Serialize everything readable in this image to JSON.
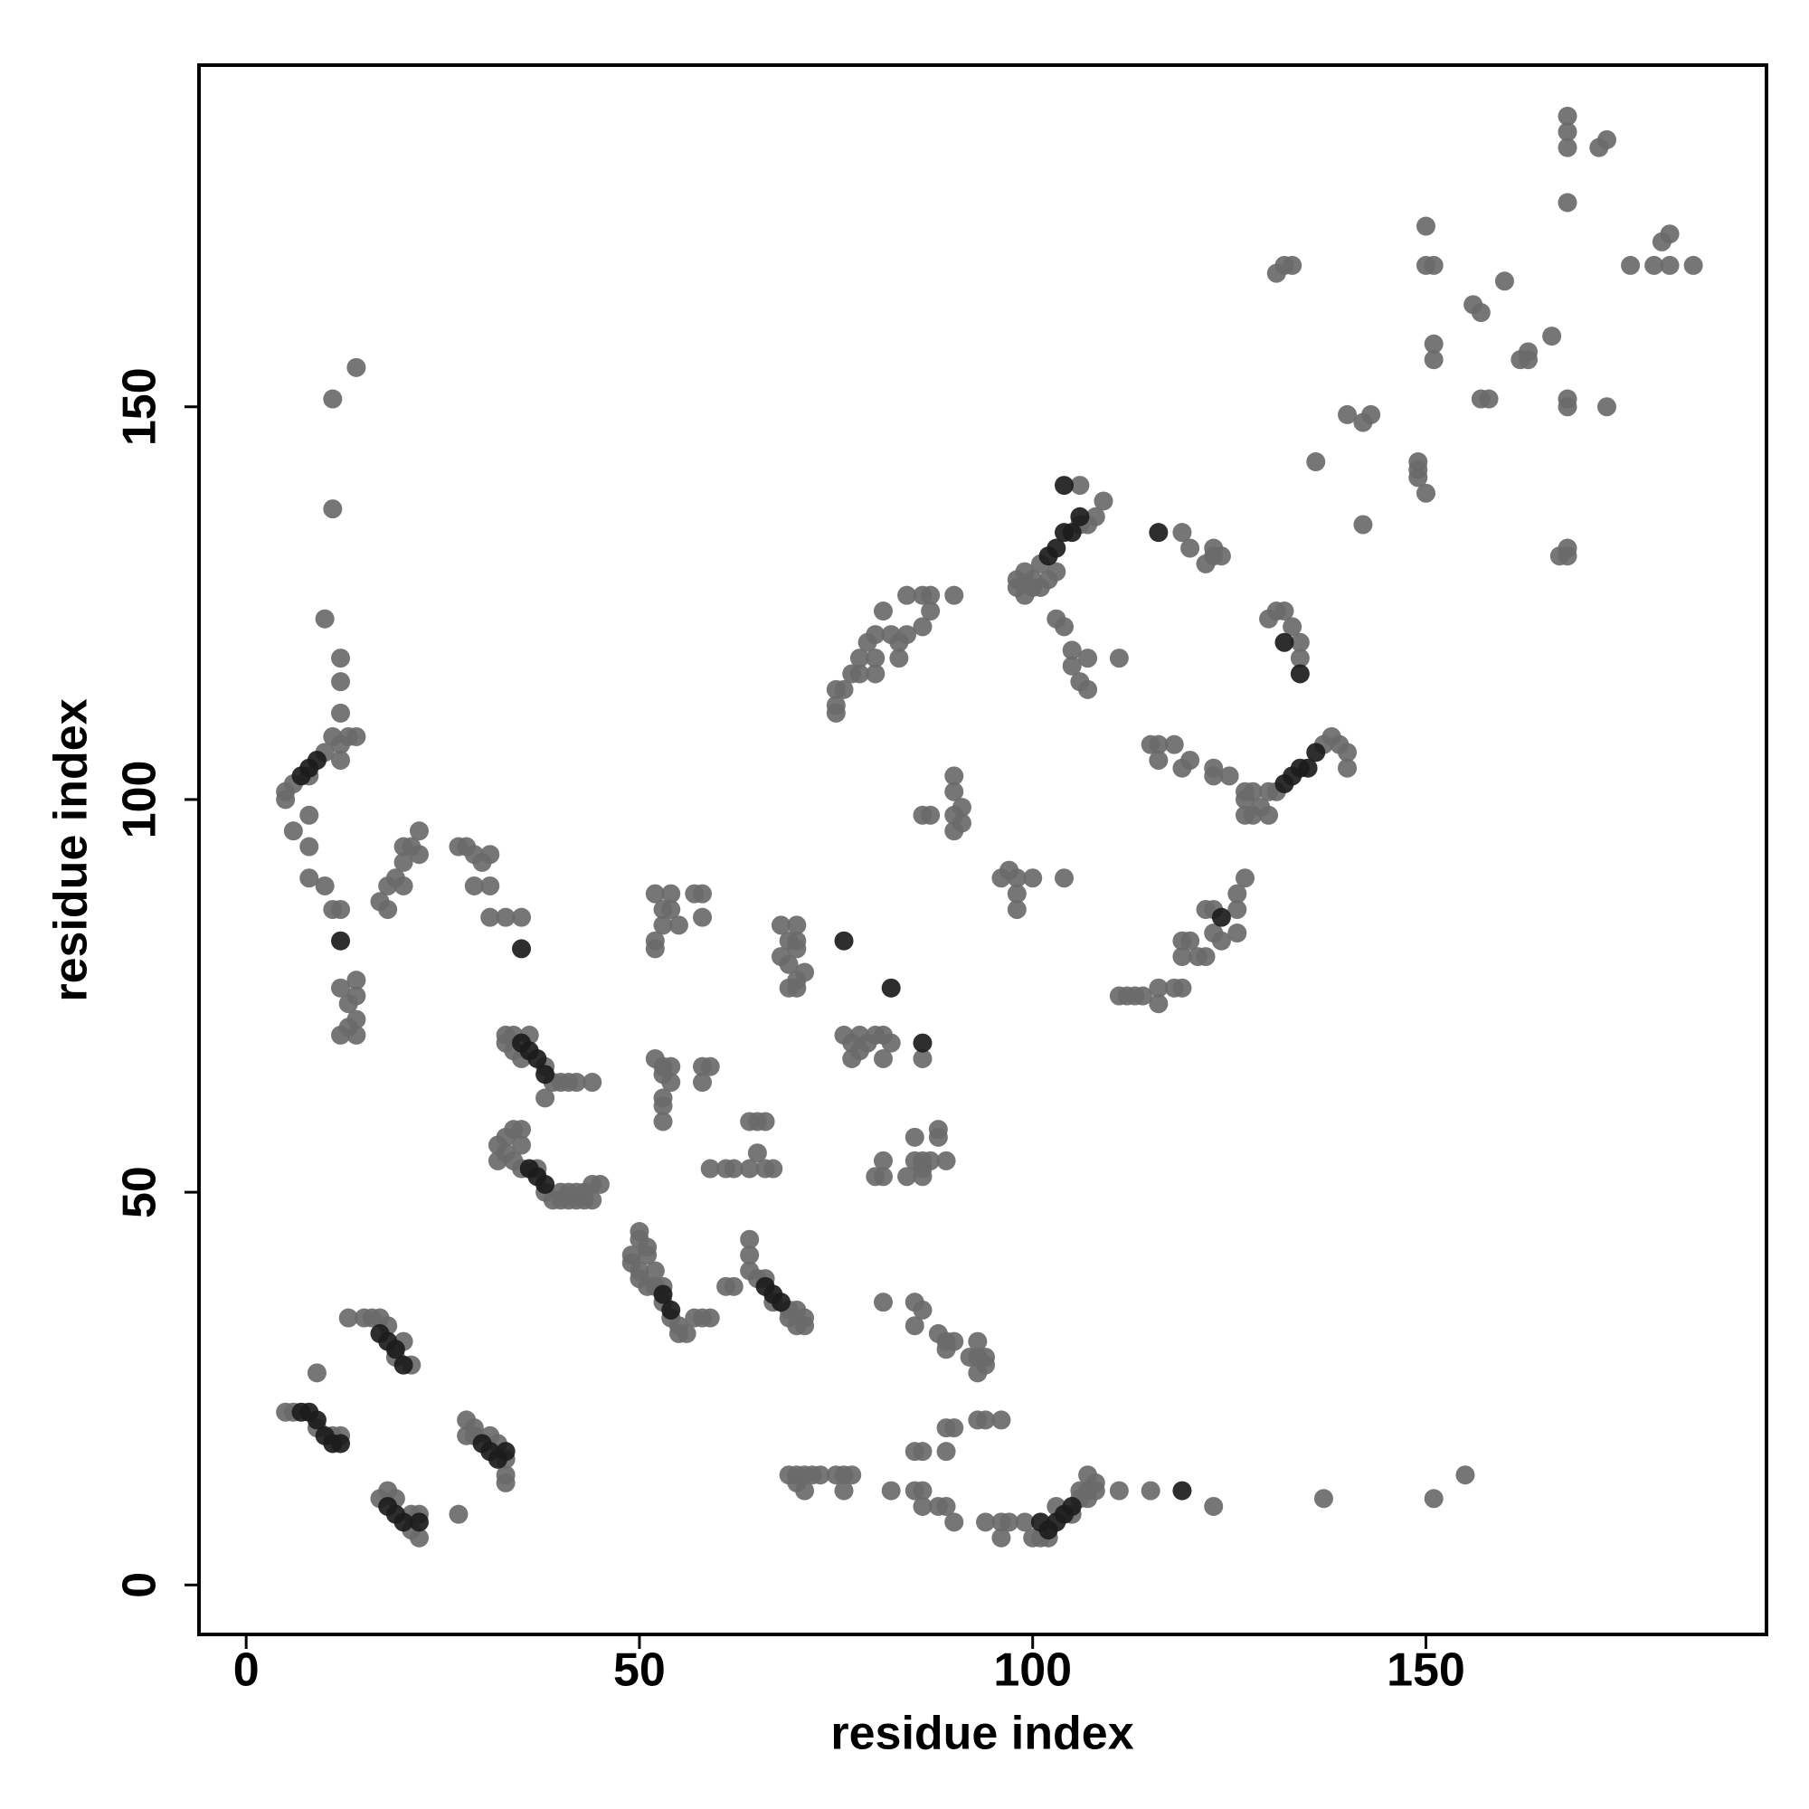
{
  "chart_data": {
    "type": "scatter",
    "x_label": "residue index",
    "y_label": "residue index",
    "xlim": [
      -6,
      193.3
    ],
    "ylim": [
      -6.3,
      193.5
    ],
    "xticks": [
      0,
      50,
      100,
      150
    ],
    "yticks": [
      0,
      50,
      100,
      150
    ],
    "grid": false,
    "series": [
      {
        "color": "#6a6a6a",
        "x": [
          5,
          6,
          9,
          11,
          12,
          17,
          18,
          19,
          21,
          22,
          22,
          21,
          16,
          17,
          18,
          19,
          20,
          21,
          15,
          13,
          9,
          27,
          28,
          29,
          29,
          31,
          32,
          33,
          33,
          33,
          28,
          12,
          13,
          11,
          12,
          10,
          6,
          5,
          5,
          8,
          6,
          8,
          8,
          8,
          10,
          11,
          12,
          12,
          14,
          14,
          14,
          14,
          12,
          13,
          13,
          14,
          12,
          12,
          12,
          10,
          11,
          11,
          14,
          18,
          19,
          20,
          20,
          21,
          22,
          22,
          18,
          17,
          20,
          27,
          28,
          29,
          29,
          31,
          31,
          31,
          33,
          35,
          30,
          33,
          34,
          38,
          39,
          40,
          41,
          42,
          44,
          34,
          35,
          38,
          33,
          36,
          32,
          33,
          34,
          35,
          35,
          32,
          33,
          34,
          35,
          38,
          39,
          40,
          41,
          42,
          43,
          44,
          45,
          40,
          41,
          42,
          43,
          44,
          37,
          52,
          51,
          50,
          50,
          51,
          50,
          51,
          52,
          53,
          54,
          55,
          55,
          56,
          57,
          58,
          59,
          49,
          49,
          50,
          53,
          52,
          53,
          53,
          52,
          54,
          54,
          55,
          52,
          57,
          58,
          58,
          52,
          53,
          53,
          54,
          54,
          53,
          53,
          53,
          58,
          58,
          59,
          59,
          61,
          62,
          64,
          64,
          65,
          66,
          65,
          66,
          67,
          64,
          64,
          64,
          65,
          66,
          67,
          69,
          69,
          70,
          71,
          70,
          71,
          61,
          62,
          68,
          70,
          69,
          70,
          68,
          69,
          70,
          70,
          71,
          69,
          70,
          76,
          77,
          78,
          78,
          79,
          80,
          81,
          82,
          81,
          86,
          77,
          85,
          85,
          86,
          86,
          87,
          88,
          88,
          89,
          80,
          81,
          81,
          84,
          86,
          81,
          85,
          86,
          85,
          88,
          89,
          90,
          89,
          92,
          93,
          93,
          94,
          94,
          93,
          69,
          70,
          71,
          72,
          73,
          75,
          76,
          77,
          70,
          71,
          76,
          82,
          85,
          86,
          86,
          88,
          89,
          90,
          94,
          96,
          96,
          97,
          99,
          85,
          86,
          89,
          89,
          90,
          93,
          94,
          96,
          100,
          101,
          102,
          106,
          106,
          107,
          107,
          108,
          108,
          103,
          105,
          107,
          111,
          115,
          123,
          137,
          151,
          155,
          75,
          75,
          76,
          75,
          77,
          78,
          78,
          79,
          80,
          80,
          80,
          83,
          83,
          82,
          84,
          84,
          86,
          87,
          87,
          90,
          86,
          81,
          96,
          97,
          98,
          98,
          98,
          100,
          104,
          86,
          87,
          90,
          91,
          90,
          90,
          91,
          90,
          98,
          98,
          99,
          100,
          100,
          101,
          106,
          107,
          108,
          109,
          106,
          101,
          102,
          103,
          99,
          103,
          104,
          105,
          105,
          106,
          107,
          107,
          111,
          111,
          112,
          113,
          114,
          116,
          116,
          118,
          119,
          121,
          119,
          119,
          120,
          122,
          123,
          124,
          123,
          126,
          126,
          126,
          127,
          122,
          115,
          116,
          116,
          118,
          119,
          120,
          123,
          123,
          125,
          127,
          128,
          128,
          129,
          130,
          130,
          131,
          137,
          138,
          139,
          140,
          140,
          127,
          127,
          119,
          120,
          122,
          123,
          123,
          124,
          130,
          131,
          132,
          133,
          134,
          134,
          140,
          142,
          143,
          136,
          142,
          149,
          150,
          149,
          149,
          150,
          150,
          151,
          151,
          151,
          156,
          157,
          157,
          158,
          160,
          162,
          163,
          163,
          166,
          167,
          168,
          168,
          168,
          168,
          168,
          168,
          168,
          168,
          172,
          173,
          173,
          176,
          179,
          180,
          181,
          181,
          184,
          131,
          132,
          133
        ],
        "values": [
          22,
          22,
          20,
          19,
          19,
          11,
          12,
          11,
          7,
          6,
          9,
          9,
          34,
          34,
          33,
          29,
          31,
          28,
          34,
          34,
          27,
          9,
          21,
          20,
          19,
          19,
          18,
          16,
          14,
          13,
          19,
          107,
          108,
          108,
          105,
          106,
          102,
          101,
          100,
          103,
          96,
          94,
          98,
          90,
          89,
          86,
          86,
          76,
          77,
          75,
          72,
          70,
          70,
          71,
          74,
          108,
          111,
          115,
          118,
          123,
          137,
          151,
          155,
          89,
          90,
          92,
          94,
          94,
          96,
          93,
          86,
          87,
          89,
          94,
          94,
          93,
          89,
          93,
          89,
          85,
          85,
          85,
          92,
          70,
          70,
          66,
          64,
          64,
          64,
          64,
          64,
          68,
          67,
          62,
          69,
          70,
          56,
          57,
          58,
          58,
          56,
          54,
          55,
          54,
          53,
          50,
          49,
          50,
          50,
          50,
          50,
          51,
          51,
          49,
          49,
          49,
          49,
          49,
          53,
          40,
          42,
          44,
          45,
          43,
          40,
          38,
          38,
          36,
          34,
          33,
          32,
          32,
          34,
          34,
          34,
          41,
          42,
          39,
          38,
          88,
          86,
          84,
          82,
          88,
          86,
          84,
          81,
          88,
          88,
          85,
          67,
          66,
          65,
          66,
          64,
          62,
          61,
          59,
          66,
          64,
          66,
          53,
          53,
          53,
          53,
          59,
          59,
          59,
          55,
          53,
          53,
          44,
          42,
          40,
          39,
          39,
          36,
          35,
          34,
          35,
          34,
          33,
          33,
          38,
          38,
          84,
          84,
          82,
          81,
          80,
          79,
          77,
          76,
          78,
          76,
          82,
          70,
          69,
          70,
          68,
          69,
          70,
          70,
          69,
          67,
          67,
          67,
          57,
          54,
          53,
          54,
          54,
          57,
          58,
          54,
          52,
          54,
          52,
          52,
          52,
          36,
          36,
          35,
          33,
          32,
          31,
          31,
          30,
          29,
          29,
          31,
          28,
          29,
          27,
          14,
          14,
          14,
          14,
          14,
          14,
          14,
          14,
          13,
          12,
          12,
          12,
          12,
          12,
          10,
          10,
          10,
          8,
          8,
          8,
          6,
          8,
          8,
          17,
          17,
          17,
          20,
          20,
          21,
          21,
          21,
          6,
          6,
          6,
          11,
          12,
          12,
          11,
          12,
          13,
          10,
          9,
          14,
          12,
          12,
          10,
          11,
          11,
          14,
          111,
          112,
          114,
          114,
          116,
          116,
          118,
          120,
          118,
          116,
          121,
          118,
          120,
          121,
          121,
          126,
          126,
          126,
          124,
          126,
          122,
          124,
          90,
          91,
          90,
          88,
          86,
          90,
          90,
          98,
          98,
          98,
          97,
          96,
          101,
          99,
          103,
          127,
          128,
          126,
          127,
          128,
          130,
          135,
          135,
          136,
          138,
          140,
          127,
          128,
          129,
          129,
          123,
          122,
          119,
          117,
          115,
          114,
          118,
          118,
          75,
          75,
          75,
          75,
          74,
          76,
          76,
          76,
          80,
          80,
          82,
          82,
          80,
          83,
          82,
          86,
          83,
          86,
          88,
          90,
          86,
          107,
          105,
          107,
          107,
          104,
          105,
          104,
          103,
          103,
          100,
          98,
          101,
          99,
          98,
          101,
          101,
          107,
          108,
          107,
          106,
          104,
          101,
          98,
          134,
          132,
          130,
          132,
          131,
          131,
          123,
          124,
          124,
          122,
          120,
          118,
          149,
          148,
          149,
          143,
          135,
          142,
          139,
          141,
          143,
          173,
          168,
          168,
          158,
          156,
          163,
          162,
          151,
          151,
          166,
          156,
          156,
          157,
          159,
          131,
          131,
          132,
          151,
          150,
          176,
          183,
          185,
          187,
          183,
          184,
          150,
          168,
          168,
          171,
          172,
          168,
          168,
          167,
          168,
          168
        ]
      },
      {
        "color": "#1c1c1c",
        "x": [
          7,
          8,
          9,
          10,
          11,
          12,
          18,
          19,
          20,
          22,
          17,
          18,
          19,
          20,
          30,
          31,
          32,
          33,
          7,
          8,
          9,
          35,
          36,
          37,
          38,
          36,
          37,
          38,
          53,
          54,
          66,
          67,
          68,
          101,
          102,
          103,
          104,
          105,
          102,
          103,
          104,
          105,
          106,
          132,
          133,
          134,
          135,
          136,
          76,
          82,
          86,
          116,
          12,
          35,
          119,
          104,
          132,
          134,
          124
        ],
        "values": [
          22,
          22,
          21,
          19,
          18,
          18,
          10,
          9,
          8,
          8,
          32,
          31,
          30,
          28,
          18,
          17,
          16,
          17,
          103,
          104,
          105,
          69,
          68,
          67,
          65,
          53,
          52,
          51,
          37,
          35,
          38,
          37,
          36,
          8,
          7,
          8,
          9,
          10,
          131,
          132,
          134,
          134,
          136,
          102,
          103,
          104,
          104,
          106,
          82,
          76,
          69,
          134,
          82,
          81,
          12,
          140,
          120,
          116,
          85
        ]
      }
    ]
  }
}
